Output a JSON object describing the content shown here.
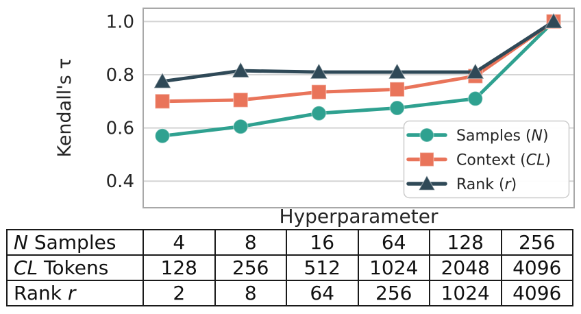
{
  "chart_data": {
    "type": "line",
    "title": "",
    "ylabel": "Kendall's τ",
    "xlabel": "Hyperparameter",
    "yticks": [
      1.0,
      0.8,
      0.6,
      0.4
    ],
    "ylim": [
      0.3,
      1.05
    ],
    "x_index": [
      1,
      2,
      3,
      4,
      5,
      6
    ],
    "grid": true,
    "legend_position": "lower right",
    "series": [
      {
        "id": "samples",
        "label": {
          "pre": "Samples (",
          "em": "N",
          "post": ")"
        },
        "marker": "circle",
        "color": "#2fa190",
        "x_values": [
          4,
          8,
          16,
          64,
          128,
          256
        ],
        "values": [
          0.57,
          0.605,
          0.655,
          0.675,
          0.71,
          1.0
        ]
      },
      {
        "id": "context",
        "label": {
          "pre": "Context (",
          "em": "CL",
          "post": ")"
        },
        "marker": "square",
        "color": "#e9745a",
        "x_values": [
          128,
          256,
          512,
          1024,
          2048,
          4096
        ],
        "values": [
          0.7,
          0.705,
          0.735,
          0.745,
          0.795,
          1.0
        ]
      },
      {
        "id": "rank",
        "label": {
          "pre": "Rank (",
          "em": "r",
          "post": ")"
        },
        "marker": "triangle-up",
        "color": "#2f4957",
        "x_values": [
          2,
          8,
          64,
          256,
          1024,
          4096
        ],
        "values": [
          0.775,
          0.815,
          0.81,
          0.81,
          0.81,
          1.0
        ]
      }
    ],
    "colors": {
      "grid": "#d4d4d4",
      "spine": "#a8a8a8",
      "text": "#262626",
      "legend_border": "#cccccc"
    }
  },
  "table": {
    "rows": [
      {
        "label": {
          "pre": "",
          "em": "N",
          "post": " Samples"
        },
        "values": [
          "4",
          "8",
          "16",
          "64",
          "128",
          "256"
        ]
      },
      {
        "label": {
          "pre": "",
          "em": "CL",
          "post": " Tokens"
        },
        "values": [
          "128",
          "256",
          "512",
          "1024",
          "2048",
          "4096"
        ]
      },
      {
        "label": {
          "pre": "Rank ",
          "em": "r",
          "post": ""
        },
        "values": [
          "2",
          "8",
          "64",
          "256",
          "1024",
          "4096"
        ]
      }
    ]
  }
}
